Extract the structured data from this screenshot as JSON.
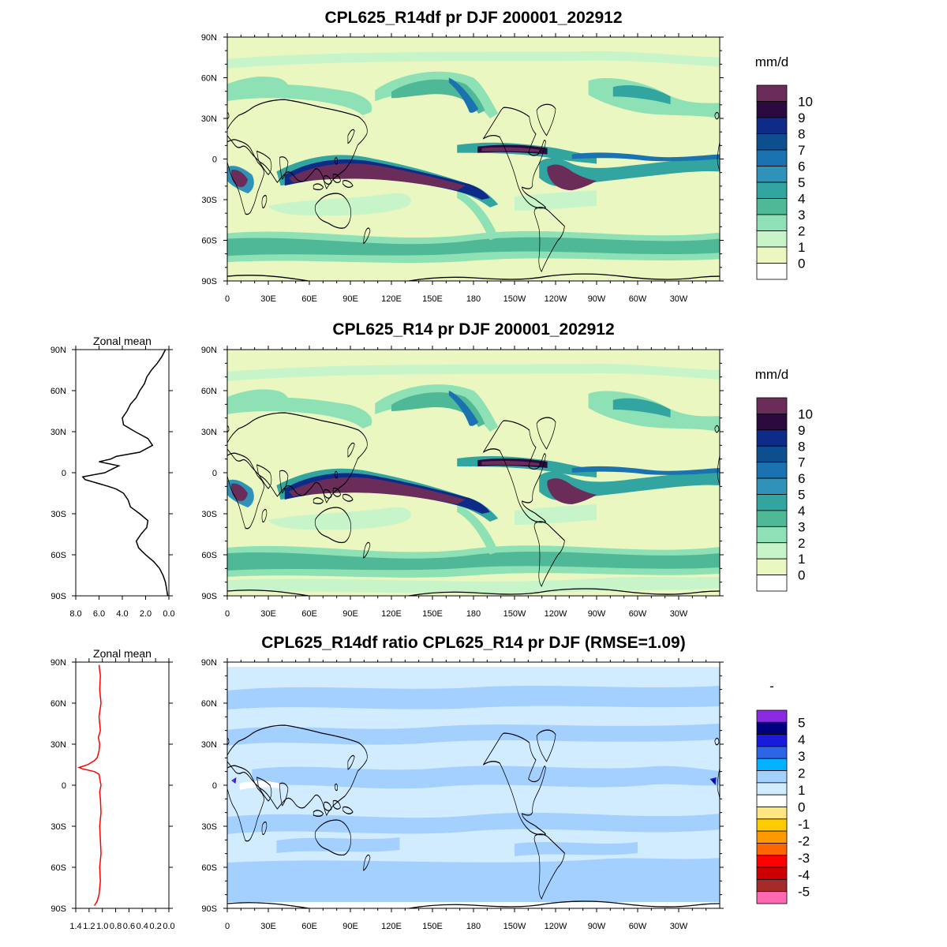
{
  "chart_data": [
    {
      "type": "heatmap",
      "title": "CPL625_R14df pr DJF 200001_202912",
      "xlabel": "",
      "ylabel": "",
      "x_ticks": [
        "0",
        "30E",
        "60E",
        "90E",
        "120E",
        "150E",
        "180",
        "150W",
        "120W",
        "90W",
        "60W",
        "30W"
      ],
      "y_ticks": [
        "90N",
        "60N",
        "30N",
        "0",
        "30S",
        "60S",
        "90S"
      ],
      "colorbar": {
        "units": "mm/d",
        "labels": [
          "10",
          "9",
          "8",
          "7",
          "6",
          "5",
          "4",
          "3",
          "2",
          "1",
          "0"
        ],
        "colors": [
          "#6a2d5a",
          "#2b0a40",
          "#0e2b87",
          "#0d4f8e",
          "#1a72b0",
          "#2f92b8",
          "#33a5a0",
          "#4fb897",
          "#8ee1b5",
          "#c7f5c9",
          "#eaf7c0",
          "#ffffff"
        ]
      }
    },
    {
      "type": "heatmap",
      "title": "CPL625_R14 pr DJF 200001_202912",
      "xlabel": "",
      "ylabel": "",
      "x_ticks": [
        "0",
        "30E",
        "60E",
        "90E",
        "120E",
        "150E",
        "180",
        "150W",
        "120W",
        "90W",
        "60W",
        "30W"
      ],
      "y_ticks": [
        "90N",
        "60N",
        "30N",
        "0",
        "30S",
        "60S",
        "90S"
      ],
      "colorbar": {
        "units": "mm/d",
        "labels": [
          "10",
          "9",
          "8",
          "7",
          "6",
          "5",
          "4",
          "3",
          "2",
          "1",
          "0"
        ],
        "colors": [
          "#6a2d5a",
          "#2b0a40",
          "#0e2b87",
          "#0d4f8e",
          "#1a72b0",
          "#2f92b8",
          "#33a5a0",
          "#4fb897",
          "#8ee1b5",
          "#c7f5c9",
          "#eaf7c0",
          "#ffffff"
        ]
      }
    },
    {
      "type": "line",
      "title": "Zonal mean",
      "x_ticks": [
        "8.0",
        "6.0",
        "4.0",
        "2.0",
        "0.0"
      ],
      "y_ticks": [
        "90N",
        "60N",
        "30N",
        "0",
        "30S",
        "60S",
        "90S"
      ],
      "xlim": [
        8.0,
        0.0
      ],
      "ylim": [
        -90,
        90
      ],
      "series": [
        {
          "color": "#000000",
          "lat": [
            90,
            85,
            80,
            75,
            70,
            65,
            60,
            55,
            50,
            45,
            40,
            35,
            30,
            25,
            20,
            15,
            12,
            10,
            8,
            5,
            3,
            0,
            -3,
            -5,
            -8,
            -10,
            -12,
            -15,
            -20,
            -25,
            -30,
            -35,
            -40,
            -45,
            -50,
            -55,
            -60,
            -65,
            -70,
            -75,
            -80,
            -85,
            -90
          ],
          "values": [
            0.3,
            0.6,
            1.0,
            1.5,
            1.9,
            2.1,
            2.5,
            2.8,
            3.3,
            3.6,
            4.0,
            3.9,
            2.9,
            1.8,
            1.4,
            2.5,
            4.5,
            5.0,
            6.0,
            4.3,
            4.8,
            5.5,
            7.4,
            7.2,
            6.0,
            5.2,
            4.5,
            3.9,
            3.5,
            3.3,
            2.5,
            1.8,
            1.9,
            2.4,
            2.8,
            2.6,
            2.0,
            1.3,
            0.8,
            0.5,
            0.3,
            0.2,
            0.1
          ]
        }
      ]
    },
    {
      "type": "heatmap",
      "title": "CPL625_R14df ratio CPL625_R14 pr DJF (RMSE=1.09)",
      "xlabel": "",
      "ylabel": "",
      "x_ticks": [
        "0",
        "30E",
        "60E",
        "90E",
        "120E",
        "150E",
        "180",
        "150W",
        "120W",
        "90W",
        "60W",
        "30W"
      ],
      "y_ticks": [
        "90N",
        "60N",
        "30N",
        "0",
        "30S",
        "60S",
        "90S"
      ],
      "colorbar": {
        "units": "-",
        "labels": [
          "5",
          "4",
          "3",
          "2",
          "1",
          "0",
          "-1",
          "-2",
          "-3",
          "-4",
          "-5"
        ],
        "colors": [
          "#8a2be2",
          "#00007f",
          "#1a1adb",
          "#2e64e6",
          "#00b2ff",
          "#a4d0ff",
          "#d2ecff",
          "#ffffff",
          "#ffe680",
          "#ffcc00",
          "#ff9900",
          "#ff6600",
          "#ff0000",
          "#cc0000",
          "#a52a2a",
          "#ff69b4"
        ]
      }
    },
    {
      "type": "line",
      "title": "Zonal mean",
      "x_ticks": [
        "1.4",
        "1.2",
        "1.0",
        "0.8",
        "0.6",
        "0.4",
        "0.2",
        "0.0"
      ],
      "y_ticks": [
        "90N",
        "60N",
        "30N",
        "0",
        "30S",
        "60S",
        "90S"
      ],
      "xlim": [
        1.4,
        0.0
      ],
      "ylim": [
        -90,
        90
      ],
      "series": [
        {
          "color": "#ff0000",
          "lat": [
            88,
            80,
            70,
            60,
            50,
            40,
            35,
            30,
            25,
            20,
            18,
            15,
            13,
            12,
            10,
            8,
            5,
            0,
            -5,
            -10,
            -20,
            -30,
            -40,
            -50,
            -60,
            -70,
            -80,
            -85,
            -88
          ],
          "values": [
            1.05,
            1.03,
            1.04,
            1.02,
            1.05,
            1.03,
            1.06,
            1.04,
            1.05,
            1.08,
            1.12,
            1.22,
            1.35,
            1.3,
            1.12,
            1.05,
            1.04,
            1.02,
            1.04,
            1.03,
            1.02,
            1.04,
            1.03,
            1.02,
            1.04,
            1.03,
            1.05,
            1.08,
            1.12
          ]
        }
      ]
    }
  ]
}
